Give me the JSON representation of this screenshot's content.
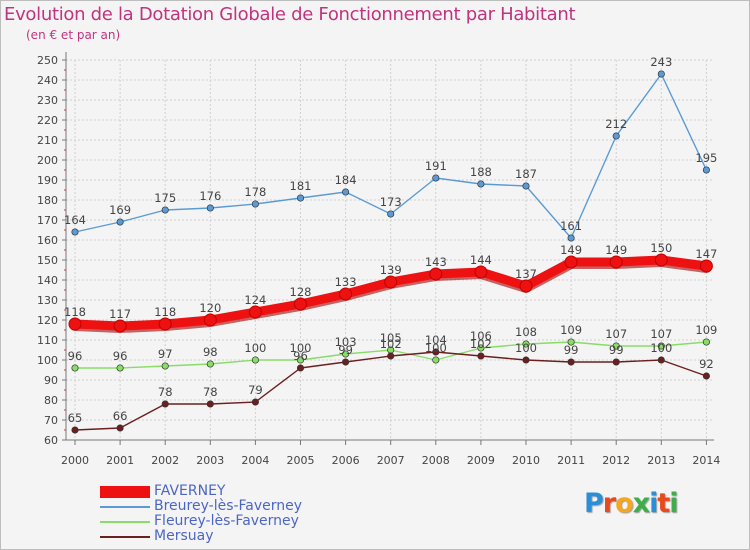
{
  "title": "Evolution de la Dotation Globale de Fonctionnement par Habitant",
  "subtitle": "(en € et par an)",
  "logo": {
    "text": "Proxiti",
    "colors": [
      "#2a8fd6",
      "#e8491d",
      "#f5a623",
      "#3fae49",
      "#2a8fd6",
      "#e8491d",
      "#3fae49"
    ]
  },
  "chart_data": {
    "type": "line",
    "title": "Evolution de la Dotation Globale de Fonctionnement par Habitant",
    "ylabel": "(en € et par an)",
    "ylim": [
      60,
      250
    ],
    "yticks": [
      60,
      70,
      80,
      90,
      100,
      110,
      120,
      130,
      140,
      150,
      160,
      170,
      180,
      190,
      200,
      210,
      220,
      230,
      240,
      250
    ],
    "x": [
      "2000",
      "2001",
      "2002",
      "2003",
      "2004",
      "2005",
      "2006",
      "2007",
      "2008",
      "2009",
      "2010",
      "2011",
      "2012",
      "2013",
      "2014"
    ],
    "grid": true,
    "legend_position": "bottom-left",
    "series": [
      {
        "name": "FAVERNEY",
        "color": "#ee1111",
        "bold": true,
        "values": [
          118,
          117,
          118,
          120,
          124,
          128,
          133,
          139,
          143,
          144,
          137,
          149,
          149,
          150,
          147
        ]
      },
      {
        "name": "Breurey-lès-Faverney",
        "color": "#5b9bd5",
        "bold": false,
        "values": [
          164,
          169,
          175,
          176,
          178,
          181,
          184,
          173,
          191,
          188,
          187,
          161,
          212,
          243,
          195
        ]
      },
      {
        "name": "Fleurey-lès-Faverney",
        "color": "#88dd66",
        "bold": false,
        "values": [
          96,
          96,
          97,
          98,
          100,
          100,
          103,
          105,
          100,
          106,
          108,
          109,
          107,
          107,
          109
        ]
      },
      {
        "name": "Mersuay",
        "color": "#6b1f1f",
        "bold": false,
        "values": [
          65,
          66,
          78,
          78,
          79,
          96,
          99,
          102,
          104,
          102,
          100,
          99,
          99,
          100,
          92
        ]
      }
    ]
  }
}
